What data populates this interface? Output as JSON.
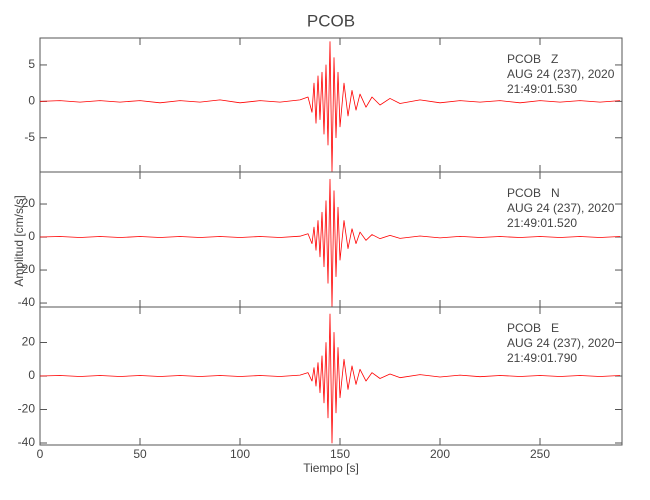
{
  "title": "PCOB",
  "xlabel": "Tiempo [s]",
  "ylabel": "Amplitud [cm/s/s]",
  "chart_data": [
    {
      "type": "line",
      "color": "#ff0000",
      "annotations": [
        "PCOB   Z",
        "AUG 24 (237), 2020",
        "21:49:01.530"
      ],
      "xlim": [
        0,
        291
      ],
      "xticks": [
        0,
        50,
        100,
        150,
        200,
        250
      ],
      "ylim": [
        -9.7,
        8.7
      ],
      "yticks": [
        -5,
        0,
        5
      ],
      "x": [
        0,
        10,
        20,
        30,
        40,
        50,
        60,
        70,
        80,
        90,
        100,
        110,
        120,
        130,
        134,
        136,
        137,
        138,
        139,
        140,
        141,
        142,
        143,
        144,
        145,
        146,
        147,
        148,
        149,
        150,
        152,
        154,
        156,
        158,
        160,
        163,
        166,
        170,
        175,
        180,
        190,
        200,
        210,
        220,
        230,
        240,
        250,
        260,
        270,
        280,
        290
      ],
      "values": [
        0,
        0.1,
        -0.1,
        0.1,
        -0.1,
        0.1,
        -0.2,
        0.1,
        -0.1,
        0.2,
        -0.2,
        0.1,
        -0.1,
        0.2,
        0.6,
        -1.5,
        2.5,
        -3,
        3.5,
        -2.5,
        4,
        -4.5,
        5,
        -6,
        8.2,
        -9.6,
        6,
        -5,
        4,
        -3.5,
        2.5,
        -2,
        1.5,
        -1.2,
        1,
        -0.8,
        0.6,
        -0.5,
        0.4,
        -0.3,
        0.2,
        -0.2,
        0.1,
        -0.1,
        0.1,
        -0.2,
        0.1,
        -0.1,
        0.1,
        -0.1,
        0.1
      ]
    },
    {
      "type": "line",
      "color": "#ff0000",
      "annotations": [
        "PCOB   N",
        "AUG 24 (237), 2020",
        "21:49:01.520"
      ],
      "xlim": [
        0,
        291
      ],
      "xticks": [
        0,
        50,
        100,
        150,
        200,
        250
      ],
      "ylim": [
        -42.4,
        39.4
      ],
      "yticks": [
        -40,
        -20,
        0,
        20
      ],
      "x": [
        0,
        10,
        20,
        30,
        40,
        50,
        60,
        70,
        80,
        90,
        100,
        110,
        120,
        130,
        134,
        136,
        137,
        138,
        139,
        140,
        141,
        142,
        143,
        144,
        145,
        146,
        147,
        148,
        149,
        150,
        152,
        154,
        156,
        158,
        160,
        163,
        166,
        170,
        175,
        180,
        190,
        200,
        210,
        220,
        230,
        240,
        250,
        260,
        270,
        280,
        290
      ],
      "values": [
        0,
        0.3,
        -0.3,
        0.3,
        -0.3,
        0.3,
        -0.3,
        0.3,
        -0.3,
        0.3,
        -0.3,
        0.3,
        -0.3,
        0.5,
        2,
        -4,
        6,
        -8,
        10,
        -12,
        15,
        -18,
        22,
        -28,
        35,
        -42,
        28,
        -24,
        18,
        -14,
        10,
        -7,
        5,
        -4,
        3,
        -2,
        1.5,
        -1,
        1,
        -0.8,
        0.6,
        -0.5,
        0.4,
        -0.3,
        0.3,
        -0.3,
        0.3,
        -0.3,
        0.3,
        -0.3,
        0.3
      ]
    },
    {
      "type": "line",
      "color": "#ff0000",
      "annotations": [
        "PCOB   E",
        "AUG 24 (237), 2020",
        "21:49:01.790"
      ],
      "xlim": [
        0,
        291
      ],
      "xticks": [
        0,
        50,
        100,
        150,
        200,
        250
      ],
      "ylim": [
        -41.2,
        41.2
      ],
      "yticks": [
        -40,
        -20,
        0,
        20
      ],
      "x": [
        0,
        10,
        20,
        30,
        40,
        50,
        60,
        70,
        80,
        90,
        100,
        110,
        120,
        130,
        134,
        136,
        137,
        138,
        139,
        140,
        141,
        142,
        143,
        144,
        145,
        146,
        147,
        148,
        149,
        150,
        152,
        154,
        156,
        158,
        160,
        163,
        166,
        170,
        175,
        180,
        190,
        200,
        210,
        220,
        230,
        240,
        250,
        260,
        270,
        280,
        290
      ],
      "values": [
        0,
        0.3,
        -0.3,
        0.3,
        -0.3,
        0.3,
        -0.3,
        0.3,
        -0.3,
        0.3,
        -0.3,
        0.3,
        -0.3,
        0.5,
        2,
        -3,
        5,
        -6,
        8,
        -10,
        12,
        -16,
        20,
        -25,
        37,
        -40,
        26,
        -22,
        17,
        -13,
        10,
        -8,
        6,
        -5,
        4,
        -3,
        2,
        -1.5,
        1.2,
        -1,
        0.8,
        -0.6,
        0.5,
        -0.4,
        0.3,
        -0.3,
        0.3,
        -0.3,
        0.3,
        -0.3,
        0.3
      ]
    }
  ]
}
